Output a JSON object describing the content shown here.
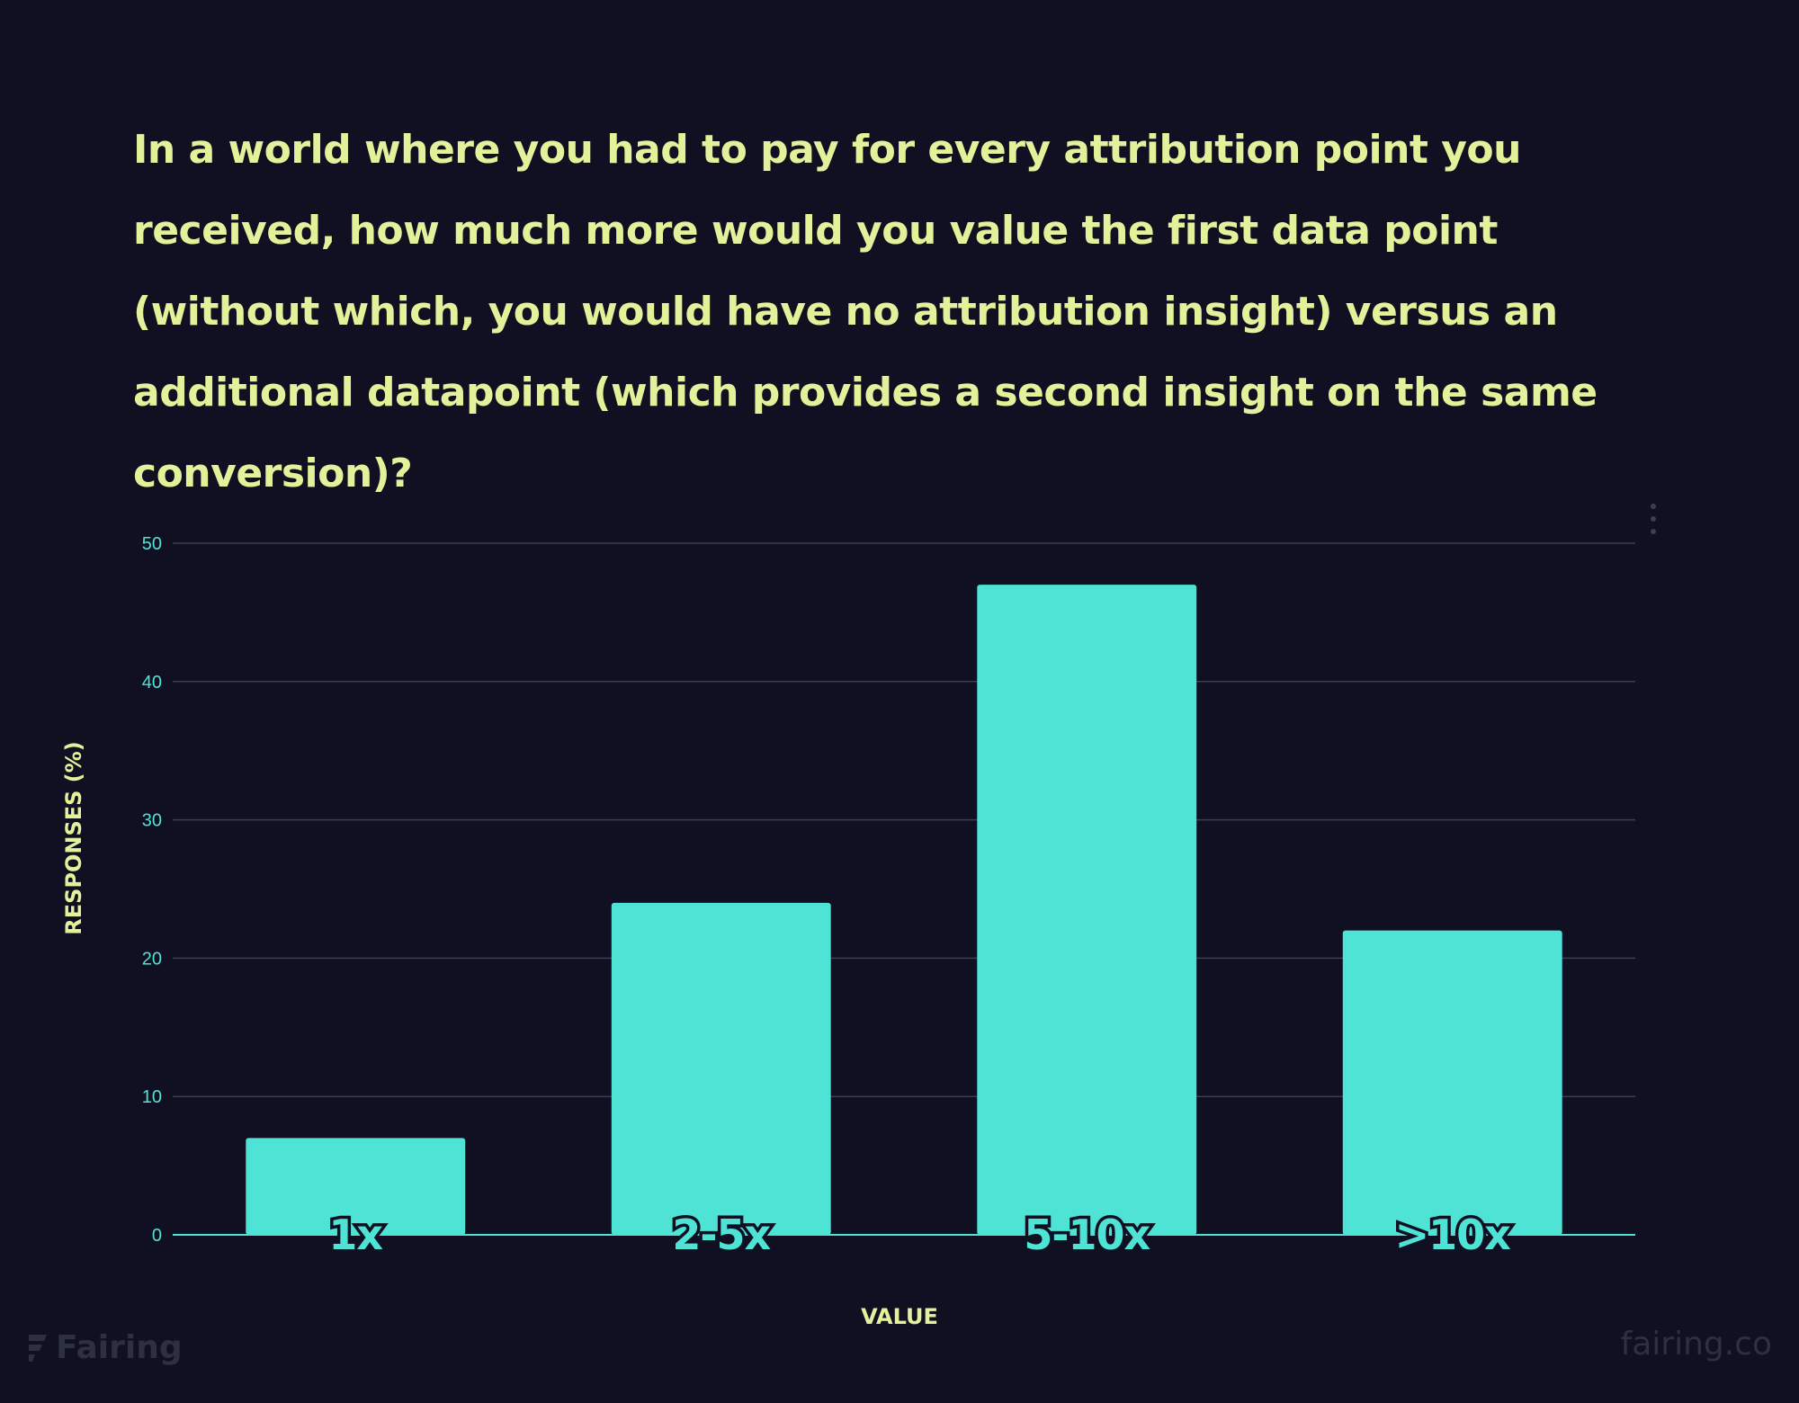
{
  "question": "In a world where you had to pay for every attribution point you received, how much more would you value the first data point (without which, you would have no attribution insight) versus an additional datapoint (which provides a second insight on the same conversion)?",
  "brand": {
    "logo_icon": "fairing-logo-icon",
    "name": "Fairing",
    "url": "fairing.co"
  },
  "menu_icon": "more-vertical-icon",
  "colors": {
    "background": "#101022",
    "bar": "#4fe3d6",
    "title": "#e3f29a",
    "grid": "#3a3c5a",
    "watermark": "#2c3041"
  },
  "chart_data": {
    "type": "bar",
    "categories": [
      "1x",
      "2-5x",
      "5-10x",
      ">10x"
    ],
    "values": [
      7,
      24,
      47,
      22
    ],
    "xlabel": "VALUE",
    "ylabel": "RESPONSES (%)",
    "ylim": [
      0,
      50
    ],
    "yticks": [
      "0",
      "10",
      "20",
      "30",
      "40",
      "50"
    ],
    "grid": true,
    "legend": "none"
  }
}
